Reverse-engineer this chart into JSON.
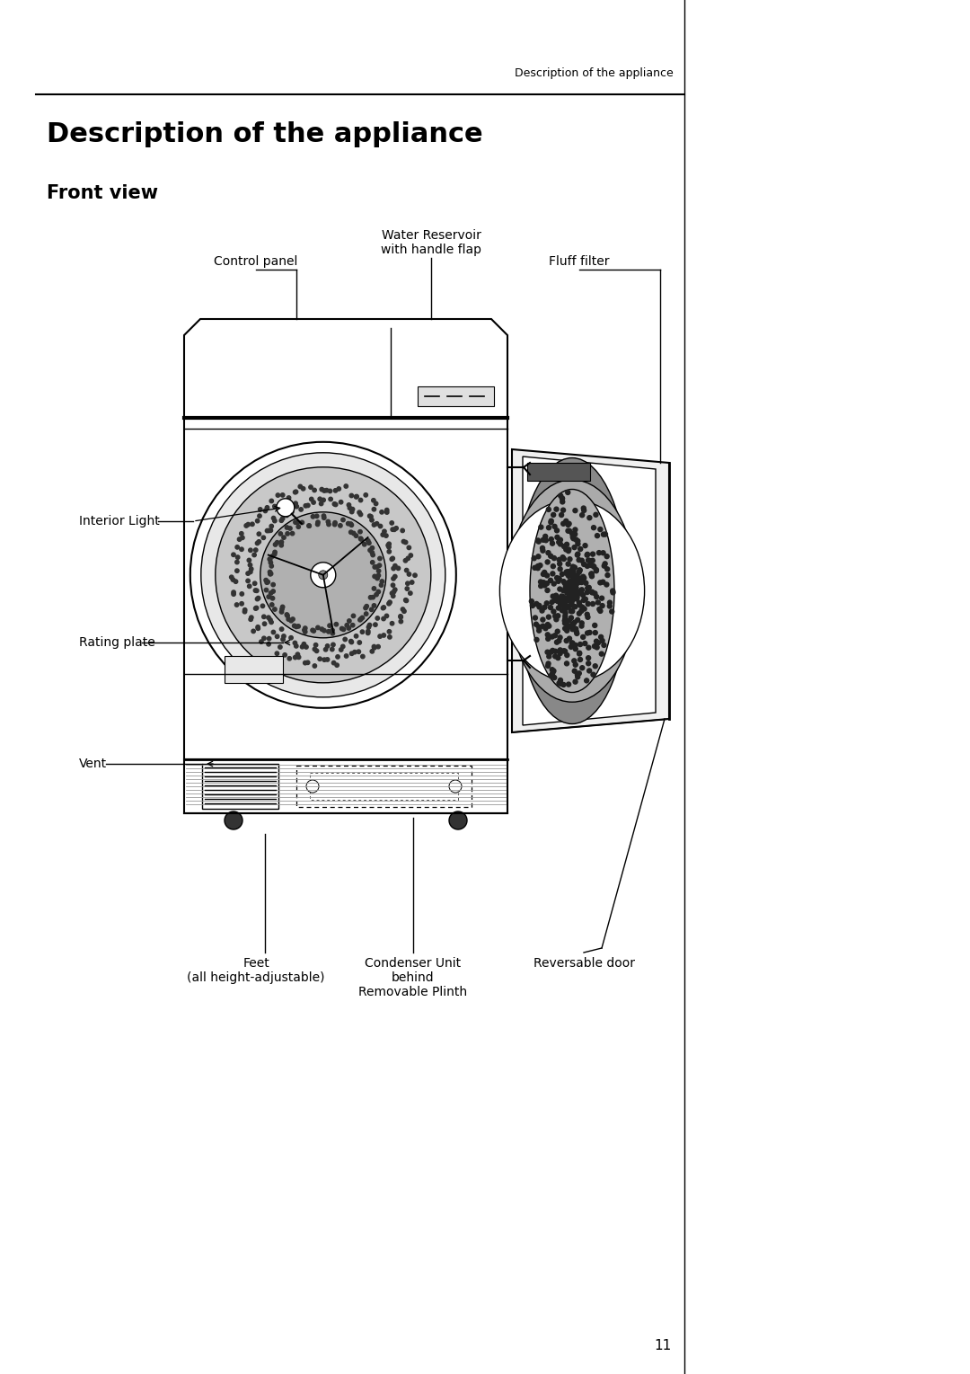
{
  "page_header": "Description of the appliance",
  "title": "Description of the appliance",
  "subtitle": "Front view",
  "page_number": "11",
  "bg_color": "#ffffff",
  "text_color": "#000000",
  "labels": {
    "control_panel": "Control panel",
    "water_reservoir": "Water Reservoir\nwith handle flap",
    "fluff_filter": "Fluff filter",
    "interior_light": "Interior Light",
    "rating_plate": "Rating plate",
    "vent": "Vent",
    "feet": "Feet\n(all height-adjustable)",
    "condenser_unit": "Condenser Unit\nbehind\nRemovable Plinth",
    "reversable_door": "Reversable door"
  },
  "line_color": "#000000",
  "drum_color": "#c8c8c8",
  "drum_inner_color": "#a8a8a8"
}
